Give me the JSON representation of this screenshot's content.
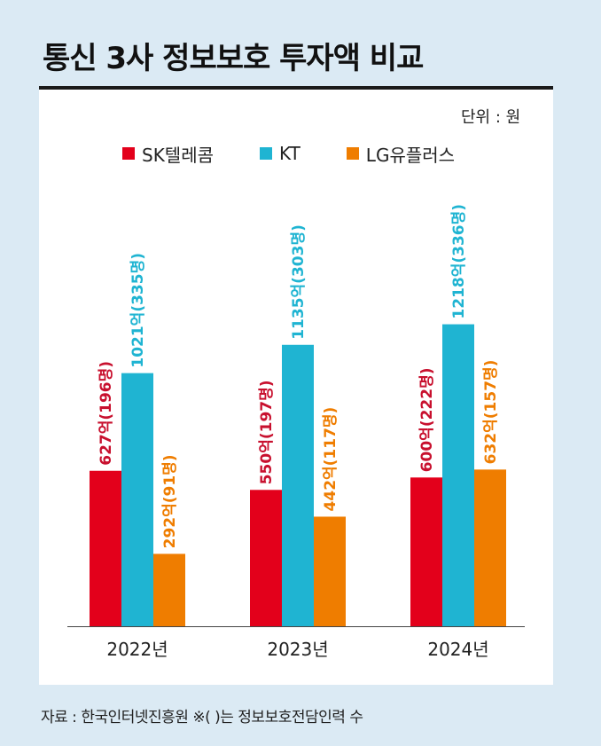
{
  "header": {
    "title": "통신 3사 정보보호 투자액 비교",
    "unit": "단위 : 원"
  },
  "footer": {
    "source": "자료 : 한국인터넷진흥원 ※( )는 정보보호전담인력 수"
  },
  "colors": {
    "background": "#dbeaf4",
    "sk": "#e3001b",
    "kt": "#1fb4d2",
    "lg": "#ef7d00",
    "title_rule": "#1a1a1a"
  },
  "chart_data": {
    "type": "bar",
    "title": "통신 3사 정보보호 투자액 비교",
    "unit": "단위 : 원",
    "legend_position": "top",
    "grid": false,
    "categories": [
      "2022년",
      "2023년",
      "2024년"
    ],
    "ylim": [
      0,
      1400
    ],
    "series": [
      {
        "name": "SK텔레콤",
        "color": "#e3001b",
        "label_color": "#c8102e",
        "values": [
          627,
          550,
          600
        ],
        "labels": [
          "627억(196명)",
          "550억(197명)",
          "600억(222명)"
        ]
      },
      {
        "name": "KT",
        "color": "#1fb4d2",
        "label_color": "#1fb4d2",
        "values": [
          1021,
          1135,
          1218
        ],
        "labels": [
          "1021억(335명)",
          "1135억(303명)",
          "1218억(336명)"
        ]
      },
      {
        "name": "LG유플러스",
        "color": "#ef7d00",
        "label_color": "#ef7d00",
        "values": [
          292,
          442,
          632
        ],
        "labels": [
          "292억(91명)",
          "442억(117명)",
          "632억(157명)"
        ]
      }
    ]
  }
}
